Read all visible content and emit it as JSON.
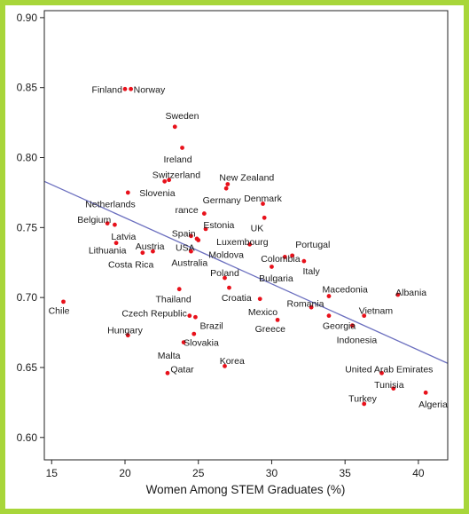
{
  "chart_data": {
    "type": "scatter",
    "xlabel": "Women Among STEM Graduates (%)",
    "ylabel": "",
    "xlim": [
      14.5,
      42.0
    ],
    "ylim": [
      0.584,
      0.905
    ],
    "xticks": [
      15,
      20,
      25,
      30,
      35,
      40
    ],
    "yticks": [
      0.6,
      0.65,
      0.7,
      0.75,
      0.8,
      0.85,
      0.9
    ],
    "grid": false,
    "colors": {
      "point": "#e8111b",
      "trend": "#6b6fbf",
      "frame": "#a8d63a"
    },
    "trendline": {
      "x": [
        14.5,
        42.0
      ],
      "y": [
        0.783,
        0.653
      ]
    },
    "points": [
      {
        "label": "Finland",
        "x": 20.0,
        "y": 0.849,
        "anchor": "end"
      },
      {
        "label": "Norway",
        "x": 20.4,
        "y": 0.849,
        "anchor": "start"
      },
      {
        "label": "Sweden",
        "x": 23.4,
        "y": 0.822,
        "anchor": "middle",
        "lx": 23.9,
        "ly": 0.83
      },
      {
        "label": "Ireland",
        "x": 23.9,
        "y": 0.807,
        "anchor": "middle",
        "lx": 23.6,
        "ly": 0.799
      },
      {
        "label": "Switzerland",
        "x": 23.0,
        "y": 0.784,
        "anchor": "middle",
        "lx": 23.5,
        "ly": 0.788
      },
      {
        "label": "New Zealand",
        "x": 27.0,
        "y": 0.781,
        "anchor": "middle",
        "lx": 28.3,
        "ly": 0.786
      },
      {
        "label": "Slovenia",
        "x": 22.7,
        "y": 0.783,
        "anchor": "middle",
        "lx": 22.2,
        "ly": 0.775
      },
      {
        "label": "Germany",
        "x": 26.9,
        "y": 0.778,
        "anchor": "middle",
        "lx": 26.6,
        "ly": 0.77
      },
      {
        "label": "Netherlands",
        "x": 20.2,
        "y": 0.775,
        "anchor": "middle",
        "lx": 19.0,
        "ly": 0.767
      },
      {
        "label": "Denmark",
        "x": 29.4,
        "y": 0.767,
        "anchor": "middle",
        "lx": 29.4,
        "ly": 0.771
      },
      {
        "label": "rance",
        "x": 25.4,
        "y": 0.76,
        "anchor": "end",
        "lx": 25.0,
        "ly": 0.763
      },
      {
        "label": "Belgium",
        "x": 18.8,
        "y": 0.753,
        "anchor": "middle",
        "lx": 17.9,
        "ly": 0.756
      },
      {
        "label": "Estonia",
        "x": 25.5,
        "y": 0.749,
        "anchor": "middle",
        "lx": 26.4,
        "ly": 0.752
      },
      {
        "label": "Latvia",
        "x": 19.3,
        "y": 0.752,
        "anchor": "middle",
        "lx": 19.9,
        "ly": 0.744
      },
      {
        "label": "UK",
        "x": 29.5,
        "y": 0.757,
        "anchor": "middle",
        "lx": 29.0,
        "ly": 0.75
      },
      {
        "label": "Spain",
        "x": 24.5,
        "y": 0.744,
        "anchor": "middle",
        "lx": 24.0,
        "ly": 0.746
      },
      {
        "label": "Luxembourg",
        "x": 28.5,
        "y": 0.738,
        "anchor": "middle",
        "lx": 28.0,
        "ly": 0.74
      },
      {
        "label": "USA",
        "x": 24.9,
        "y": 0.742,
        "anchor": "middle",
        "lx": 24.1,
        "ly": 0.736
      },
      {
        "label": "Portugal",
        "x": 31.4,
        "y": 0.73,
        "anchor": "middle",
        "lx": 32.8,
        "ly": 0.738
      },
      {
        "label": "Moldova",
        "x": 25.0,
        "y": 0.741,
        "anchor": "middle",
        "lx": 26.9,
        "ly": 0.731
      },
      {
        "label": "Lithuania",
        "x": 19.4,
        "y": 0.739,
        "anchor": "middle",
        "lx": 18.8,
        "ly": 0.734
      },
      {
        "label": "Austria",
        "x": 21.9,
        "y": 0.733,
        "anchor": "middle",
        "lx": 21.7,
        "ly": 0.737
      },
      {
        "label": "Colombia",
        "x": 30.9,
        "y": 0.729,
        "anchor": "middle",
        "lx": 30.6,
        "ly": 0.728
      },
      {
        "label": "Australia",
        "x": 24.5,
        "y": 0.733,
        "anchor": "middle",
        "lx": 24.4,
        "ly": 0.725
      },
      {
        "label": "Costa Rica",
        "x": 21.2,
        "y": 0.732,
        "anchor": "middle",
        "lx": 20.4,
        "ly": 0.724
      },
      {
        "label": "Italy",
        "x": 32.2,
        "y": 0.726,
        "anchor": "middle",
        "lx": 32.7,
        "ly": 0.719
      },
      {
        "label": "Poland",
        "x": 26.8,
        "y": 0.714,
        "anchor": "middle",
        "lx": 26.8,
        "ly": 0.718
      },
      {
        "label": "Bulgaria",
        "x": 30.0,
        "y": 0.722,
        "anchor": "middle",
        "lx": 30.3,
        "ly": 0.714
      },
      {
        "label": "Macedonia",
        "x": 33.9,
        "y": 0.701,
        "anchor": "middle",
        "lx": 35.0,
        "ly": 0.706
      },
      {
        "label": "Albania",
        "x": 38.6,
        "y": 0.702,
        "anchor": "middle",
        "lx": 39.5,
        "ly": 0.704
      },
      {
        "label": "Thailand",
        "x": 23.7,
        "y": 0.706,
        "anchor": "middle",
        "lx": 23.3,
        "ly": 0.699
      },
      {
        "label": "Croatia",
        "x": 27.1,
        "y": 0.707,
        "anchor": "middle",
        "lx": 27.6,
        "ly": 0.7
      },
      {
        "label": "Chile",
        "x": 15.8,
        "y": 0.697,
        "anchor": "middle",
        "lx": 15.5,
        "ly": 0.691
      },
      {
        "label": "Romania",
        "x": 32.7,
        "y": 0.693,
        "anchor": "middle",
        "lx": 32.3,
        "ly": 0.696
      },
      {
        "label": "Mexico",
        "x": 29.2,
        "y": 0.699,
        "anchor": "middle",
        "lx": 29.4,
        "ly": 0.69
      },
      {
        "label": "Vietnam",
        "x": 36.3,
        "y": 0.687,
        "anchor": "middle",
        "lx": 37.1,
        "ly": 0.691
      },
      {
        "label": "Czech Republic",
        "x": 24.4,
        "y": 0.687,
        "anchor": "middle",
        "lx": 22.0,
        "ly": 0.689
      },
      {
        "label": "Georgia",
        "x": 33.9,
        "y": 0.687,
        "anchor": "middle",
        "lx": 34.6,
        "ly": 0.68
      },
      {
        "label": "Greece",
        "x": 30.4,
        "y": 0.684,
        "anchor": "middle",
        "lx": 29.9,
        "ly": 0.678
      },
      {
        "label": "Indonesia",
        "x": 35.5,
        "y": 0.68,
        "anchor": "middle",
        "lx": 35.8,
        "ly": 0.67
      },
      {
        "label": "Brazil",
        "x": 24.8,
        "y": 0.686,
        "anchor": "middle",
        "lx": 25.9,
        "ly": 0.68
      },
      {
        "label": "Hungary",
        "x": 20.2,
        "y": 0.673,
        "anchor": "middle",
        "lx": 20.0,
        "ly": 0.677
      },
      {
        "label": "Slovakia",
        "x": 24.7,
        "y": 0.674,
        "anchor": "middle",
        "lx": 25.2,
        "ly": 0.668
      },
      {
        "label": "Malta",
        "x": 24.0,
        "y": 0.668,
        "anchor": "middle",
        "lx": 23.0,
        "ly": 0.659
      },
      {
        "label": "Korea",
        "x": 26.8,
        "y": 0.651,
        "anchor": "middle",
        "lx": 27.3,
        "ly": 0.655
      },
      {
        "label": "United Arab Emirates",
        "x": 37.5,
        "y": 0.646,
        "anchor": "middle",
        "lx": 38.0,
        "ly": 0.649
      },
      {
        "label": "Qatar",
        "x": 22.9,
        "y": 0.646,
        "anchor": "middle",
        "lx": 23.9,
        "ly": 0.649
      },
      {
        "label": "Tunisia",
        "x": 38.3,
        "y": 0.635,
        "anchor": "middle",
        "lx": 38.0,
        "ly": 0.638
      },
      {
        "label": "Turkey",
        "x": 36.3,
        "y": 0.624,
        "anchor": "middle",
        "lx": 36.2,
        "ly": 0.628
      },
      {
        "label": "Algeria",
        "x": 40.5,
        "y": 0.632,
        "anchor": "middle",
        "lx": 41.0,
        "ly": 0.624
      }
    ]
  }
}
